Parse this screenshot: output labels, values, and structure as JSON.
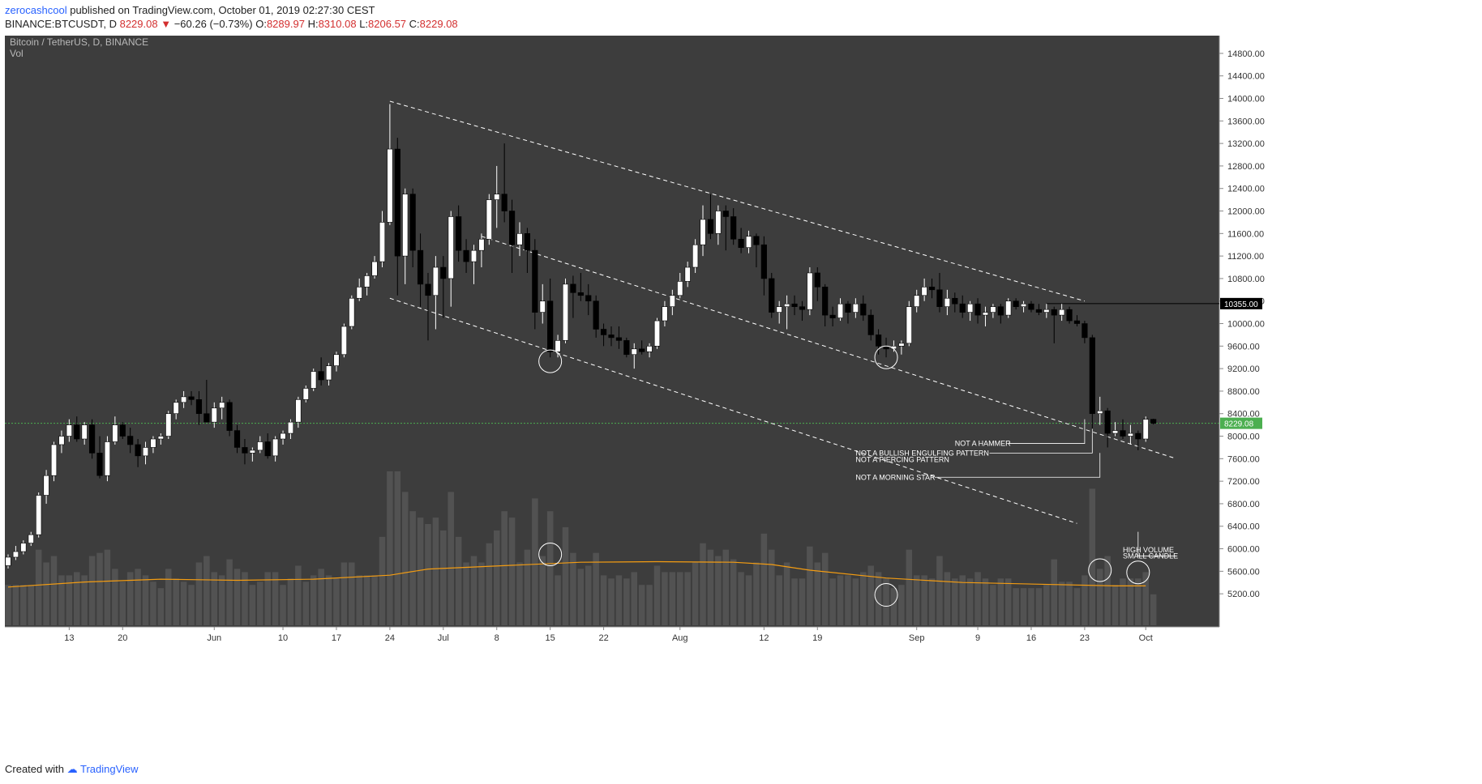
{
  "header": {
    "author": "zerocashcool",
    "published_text": " published on TradingView.com, October 01, 2019 02:27:30 CEST",
    "symbol": "BINANCE:BTCUSDT, D",
    "last_price": "8229.08",
    "change": "−60.26 (−0.73%)",
    "o_label": "O:",
    "o_value": "8289.97",
    "h_label": "H:",
    "h_value": "8310.08",
    "l_label": "L:",
    "l_value": "8206.57",
    "c_label": "C:",
    "c_value": "8229.08"
  },
  "footer": {
    "created_with": "Created with",
    "brand": "TradingView"
  },
  "chart_data": {
    "type": "candlestick",
    "title": "Bitcoin / TetherUS, D, BINANCE",
    "subtitle": "Vol",
    "ylim": [
      4900,
      15000
    ],
    "y_ticks": [
      5200,
      5600,
      6000,
      6400,
      6800,
      7200,
      7600,
      8000,
      8400,
      8800,
      9200,
      9600,
      10000,
      10400,
      10800,
      11200,
      11600,
      12000,
      12400,
      12800,
      13200,
      13600,
      14000,
      14400,
      14800
    ],
    "y_tick_labels": [
      "5200.00",
      "5600.00",
      "6000.00",
      "6400.00",
      "6800.00",
      "7200.00",
      "7600.00",
      "8000.00",
      "8400.00",
      "8800.00",
      "9200.00",
      "9600.00",
      "10000.00",
      "10400.00",
      "10800.00",
      "11200.00",
      "11600.00",
      "12000.00",
      "12400.00",
      "12800.00",
      "13200.00",
      "13600.00",
      "14000.00",
      "14400.00",
      "14800.00"
    ],
    "x_labels": [
      {
        "label": "13",
        "day": 8
      },
      {
        "label": "20",
        "day": 15
      },
      {
        "label": "Jun",
        "day": 27
      },
      {
        "label": "10",
        "day": 36
      },
      {
        "label": "17",
        "day": 43
      },
      {
        "label": "24",
        "day": 50
      },
      {
        "label": "Jul",
        "day": 57
      },
      {
        "label": "8",
        "day": 64
      },
      {
        "label": "15",
        "day": 71
      },
      {
        "label": "22",
        "day": 78
      },
      {
        "label": "Aug",
        "day": 88
      },
      {
        "label": "12",
        "day": 99
      },
      {
        "label": "19",
        "day": 106
      },
      {
        "label": "Sep",
        "day": 119
      },
      {
        "label": "9",
        "day": 127
      },
      {
        "label": "16",
        "day": 134
      },
      {
        "label": "23",
        "day": 141
      },
      {
        "label": "Oct",
        "day": 149
      }
    ],
    "x_range_days": [
      0,
      158
    ],
    "candles": [
      [
        5700,
        5900,
        5650,
        5850
      ],
      [
        5850,
        6050,
        5800,
        5950
      ],
      [
        5950,
        6150,
        5900,
        6100
      ],
      [
        6100,
        6300,
        6050,
        6250
      ],
      [
        6250,
        7000,
        6200,
        6950
      ],
      [
        6950,
        7400,
        6800,
        7300
      ],
      [
        7300,
        7900,
        7200,
        7850
      ],
      [
        7850,
        8100,
        7700,
        8000
      ],
      [
        8000,
        8300,
        7900,
        8200
      ],
      [
        8200,
        8350,
        7900,
        7950
      ],
      [
        7950,
        8250,
        7850,
        8200
      ],
      [
        8200,
        8300,
        7600,
        7700
      ],
      [
        7700,
        8000,
        7250,
        7300
      ],
      [
        7300,
        8000,
        7200,
        7900
      ],
      [
        7900,
        8350,
        7850,
        8200
      ],
      [
        8200,
        8250,
        7950,
        8000
      ],
      [
        8000,
        8150,
        7700,
        7850
      ],
      [
        7850,
        7950,
        7450,
        7650
      ],
      [
        7650,
        7900,
        7500,
        7800
      ],
      [
        7800,
        8000,
        7700,
        7950
      ],
      [
        7950,
        8050,
        7850,
        8000
      ],
      [
        8000,
        8450,
        7950,
        8400
      ],
      [
        8400,
        8650,
        8300,
        8600
      ],
      [
        8600,
        8800,
        8500,
        8700
      ],
      [
        8700,
        8800,
        8550,
        8650
      ],
      [
        8650,
        8800,
        8200,
        8400
      ],
      [
        8400,
        9000,
        8300,
        8250
      ],
      [
        8250,
        8600,
        8150,
        8500
      ],
      [
        8500,
        8700,
        8300,
        8600
      ],
      [
        8600,
        8650,
        8000,
        8100
      ],
      [
        8100,
        8200,
        7700,
        7800
      ],
      [
        7800,
        7950,
        7500,
        7700
      ],
      [
        7700,
        7800,
        7550,
        7750
      ],
      [
        7750,
        8000,
        7700,
        7900
      ],
      [
        7900,
        8050,
        7600,
        7650
      ],
      [
        7650,
        8000,
        7550,
        7950
      ],
      [
        7950,
        8100,
        7850,
        8050
      ],
      [
        8050,
        8300,
        7950,
        8250
      ],
      [
        8250,
        8700,
        8150,
        8650
      ],
      [
        8650,
        8900,
        8600,
        8850
      ],
      [
        8850,
        9200,
        8800,
        9150
      ],
      [
        9150,
        9400,
        8900,
        9000
      ],
      [
        9000,
        9300,
        8900,
        9250
      ],
      [
        9250,
        9500,
        9150,
        9450
      ],
      [
        9450,
        10000,
        9400,
        9950
      ],
      [
        9950,
        10500,
        9900,
        10450
      ],
      [
        10450,
        10800,
        10400,
        10650
      ],
      [
        10650,
        10900,
        10500,
        10850
      ],
      [
        10850,
        11200,
        10800,
        11100
      ],
      [
        11100,
        12000,
        11000,
        11800
      ],
      [
        11800,
        13900,
        11750,
        13100
      ],
      [
        13100,
        13300,
        10500,
        11200
      ],
      [
        11200,
        12400,
        10700,
        12300
      ],
      [
        12300,
        12400,
        11000,
        11300
      ],
      [
        11300,
        11600,
        10300,
        10700
      ],
      [
        10700,
        10900,
        9700,
        10500
      ],
      [
        10500,
        11200,
        9900,
        11000
      ],
      [
        11000,
        11200,
        10100,
        10800
      ],
      [
        10800,
        12000,
        10300,
        11900
      ],
      [
        11900,
        12100,
        11100,
        11300
      ],
      [
        11300,
        11500,
        10900,
        11100
      ],
      [
        11100,
        11400,
        10700,
        11300
      ],
      [
        11300,
        11600,
        11000,
        11500
      ],
      [
        11500,
        12300,
        11400,
        12200
      ],
      [
        12200,
        12800,
        11700,
        12300
      ],
      [
        12300,
        13200,
        11800,
        12000
      ],
      [
        12000,
        12200,
        10900,
        11400
      ],
      [
        11400,
        11800,
        11200,
        11600
      ],
      [
        11600,
        11700,
        10900,
        11300
      ],
      [
        11300,
        11500,
        9900,
        10200
      ],
      [
        10200,
        10700,
        10000,
        10400
      ],
      [
        10400,
        10800,
        9400,
        9500
      ],
      [
        9500,
        9800,
        9400,
        9700
      ],
      [
        9700,
        10800,
        9650,
        10700
      ],
      [
        10700,
        10850,
        10100,
        10550
      ],
      [
        10550,
        10900,
        10400,
        10500
      ],
      [
        10500,
        10700,
        10150,
        10400
      ],
      [
        10400,
        10500,
        9750,
        9900
      ],
      [
        9900,
        10000,
        9600,
        9800
      ],
      [
        9800,
        9950,
        9600,
        9750
      ],
      [
        9750,
        9950,
        9550,
        9700
      ],
      [
        9700,
        9750,
        9400,
        9450
      ],
      [
        9450,
        9650,
        9200,
        9550
      ],
      [
        9550,
        9700,
        9450,
        9500
      ],
      [
        9500,
        9650,
        9400,
        9600
      ],
      [
        9600,
        10100,
        9550,
        10050
      ],
      [
        10050,
        10400,
        9950,
        10300
      ],
      [
        10300,
        10600,
        10150,
        10500
      ],
      [
        10500,
        10900,
        10450,
        10750
      ],
      [
        10750,
        11100,
        10650,
        11000
      ],
      [
        11000,
        11500,
        10900,
        11400
      ],
      [
        11400,
        12100,
        11200,
        11850
      ],
      [
        11850,
        12300,
        11500,
        11600
      ],
      [
        11600,
        12100,
        11400,
        12000
      ],
      [
        12000,
        12100,
        11300,
        11900
      ],
      [
        11900,
        12050,
        11400,
        11500
      ],
      [
        11500,
        11700,
        11250,
        11350
      ],
      [
        11350,
        11650,
        11250,
        11550
      ],
      [
        11550,
        11600,
        11000,
        11400
      ],
      [
        11400,
        11550,
        10500,
        10800
      ],
      [
        10800,
        10900,
        10100,
        10200
      ],
      [
        10200,
        10400,
        10000,
        10300
      ],
      [
        10300,
        10500,
        9900,
        10350
      ],
      [
        10350,
        10500,
        10150,
        10300
      ],
      [
        10300,
        10400,
        10050,
        10250
      ],
      [
        10250,
        11000,
        10150,
        10900
      ],
      [
        10900,
        11000,
        10400,
        10650
      ],
      [
        10650,
        10700,
        9950,
        10150
      ],
      [
        10150,
        10300,
        9950,
        10100
      ],
      [
        10100,
        10450,
        10050,
        10350
      ],
      [
        10350,
        10400,
        10000,
        10200
      ],
      [
        10200,
        10450,
        10100,
        10350
      ],
      [
        10350,
        10500,
        10050,
        10150
      ],
      [
        10150,
        10250,
        9700,
        9800
      ],
      [
        9800,
        9900,
        9450,
        9600
      ],
      [
        9600,
        9750,
        9400,
        9550
      ],
      [
        9550,
        9700,
        9500,
        9600
      ],
      [
        9600,
        9700,
        9450,
        9650
      ],
      [
        9650,
        10400,
        9600,
        10300
      ],
      [
        10300,
        10600,
        10200,
        10500
      ],
      [
        10500,
        10800,
        10400,
        10650
      ],
      [
        10650,
        10800,
        10450,
        10600
      ],
      [
        10600,
        10900,
        10200,
        10300
      ],
      [
        10300,
        10600,
        10150,
        10450
      ],
      [
        10450,
        10550,
        10200,
        10350
      ],
      [
        10350,
        10500,
        10100,
        10200
      ],
      [
        10200,
        10400,
        10050,
        10350
      ],
      [
        10350,
        10450,
        10000,
        10150
      ],
      [
        10150,
        10300,
        9950,
        10200
      ],
      [
        10200,
        10350,
        10100,
        10300
      ],
      [
        10300,
        10350,
        10000,
        10150
      ],
      [
        10150,
        10450,
        10100,
        10400
      ],
      [
        10400,
        10450,
        10250,
        10300
      ],
      [
        10300,
        10400,
        10200,
        10350
      ],
      [
        10350,
        10400,
        10200,
        10250
      ],
      [
        10250,
        10350,
        10150,
        10200
      ],
      [
        10200,
        10350,
        10100,
        10250
      ],
      [
        10250,
        10300,
        9650,
        10150
      ],
      [
        10150,
        10350,
        10050,
        10250
      ],
      [
        10250,
        10300,
        10000,
        10050
      ],
      [
        10050,
        10150,
        9950,
        10000
      ],
      [
        10000,
        10050,
        9650,
        9750
      ],
      [
        9750,
        9800,
        8050,
        8400
      ],
      [
        8400,
        8700,
        8200,
        8450
      ],
      [
        8450,
        8500,
        7800,
        8050
      ],
      [
        8050,
        8250,
        8000,
        8100
      ],
      [
        8100,
        8300,
        7950,
        8000
      ],
      [
        8000,
        8200,
        7850,
        8050
      ],
      [
        8050,
        8100,
        7750,
        7950
      ],
      [
        7950,
        8350,
        7900,
        8300
      ],
      [
        8300,
        8310,
        8207,
        8229
      ]
    ],
    "volume_ma_sample": [
      [
        0,
        5320
      ],
      [
        10,
        5410
      ],
      [
        20,
        5460
      ],
      [
        30,
        5440
      ],
      [
        40,
        5460
      ],
      [
        50,
        5530
      ],
      [
        55,
        5640
      ],
      [
        65,
        5700
      ],
      [
        75,
        5760
      ],
      [
        85,
        5770
      ],
      [
        95,
        5760
      ],
      [
        100,
        5720
      ],
      [
        105,
        5620
      ],
      [
        115,
        5480
      ],
      [
        125,
        5400
      ],
      [
        135,
        5370
      ],
      [
        145,
        5340
      ],
      [
        149,
        5340
      ]
    ],
    "trendlines": [
      {
        "from": [
          50,
          13950
        ],
        "to": [
          141,
          10400
        ],
        "style": "dashed"
      },
      {
        "from": [
          62,
          11550
        ],
        "to": [
          153,
          7600
        ],
        "style": "dashed"
      },
      {
        "from": [
          50,
          10450
        ],
        "to": [
          140,
          6450
        ],
        "style": "dashed"
      }
    ],
    "horizontal_line": {
      "value": 10355,
      "from_day": 136,
      "label": "10355.00"
    },
    "current_price": {
      "value": 8229,
      "label": "8229.08"
    },
    "circles": [
      {
        "day": 71,
        "value": 9330
      },
      {
        "day": 115,
        "value": 9400
      },
      {
        "day": 71,
        "value": 5900
      },
      {
        "day": 115,
        "value": 5180
      },
      {
        "day": 143,
        "value": 5620
      },
      {
        "day": 148,
        "value": 5580
      }
    ],
    "annotations": [
      {
        "text": "NOT A HAMMER",
        "day": 124,
        "value": 7870,
        "target_day": 141
      },
      {
        "text": "NOT A BULLISH ENGULFING PATTERN",
        "day": 111,
        "value": 7700,
        "target_day": 142
      },
      {
        "text": "NOT A PIERCING PATTERN",
        "day": 111,
        "value": 7580,
        "target_day": null
      },
      {
        "text": "NOT A MORNING STAR",
        "day": 111,
        "value": 7270,
        "target_day": 143
      },
      {
        "text": "HIGH VOLUME",
        "day": 146,
        "value": 5980,
        "target_day": null
      },
      {
        "text": "SMALL CANDLE",
        "day": 146,
        "value": 5870,
        "target_day": 148
      }
    ],
    "colors": {
      "background": "#3d3d3d",
      "up_candle": "#ffffff",
      "down_candle": "#000000",
      "volume": "#525252",
      "volume_ma": "#f39c12",
      "current_price_line": "#4caf50",
      "price_tag": "#4caf50",
      "level_tag": "#000000",
      "trendline": "#ffffff",
      "annotation_text": "#ffffff"
    },
    "grid": false,
    "legend": "top-left"
  }
}
